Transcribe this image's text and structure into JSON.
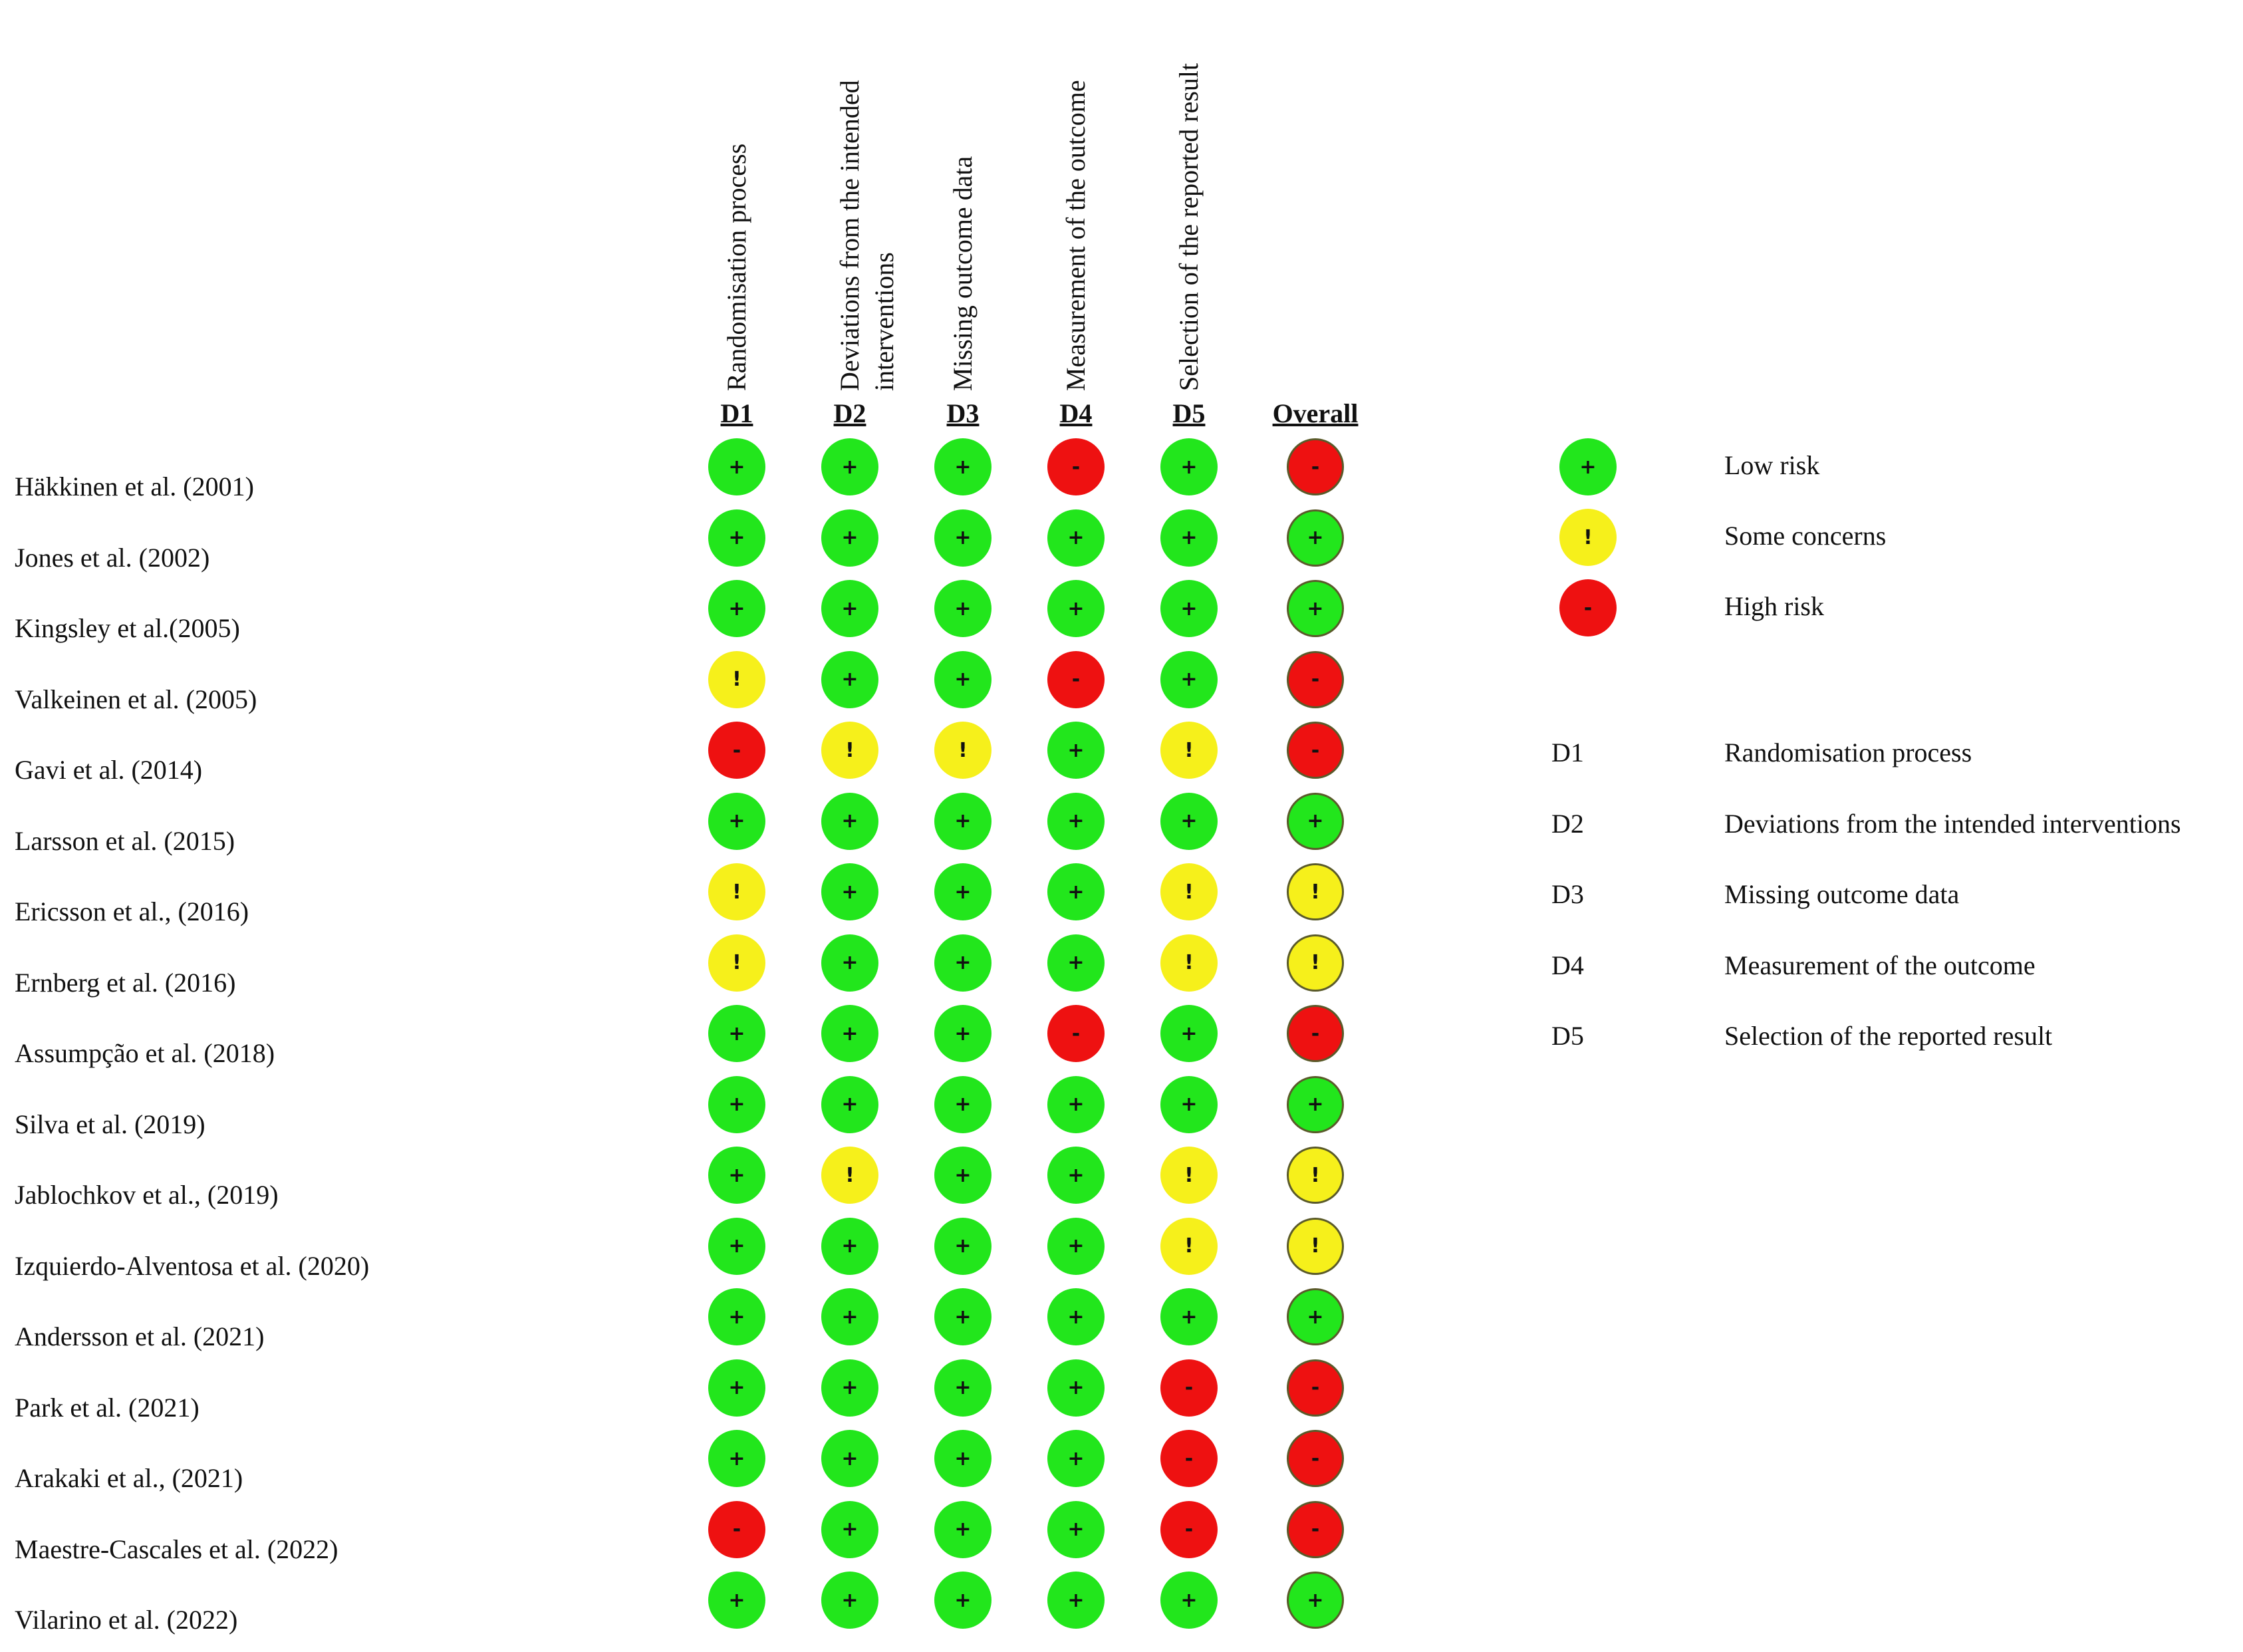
{
  "domains": [
    "D1",
    "D2",
    "D3",
    "D4",
    "D5",
    "Overall"
  ],
  "domain_headers": [
    [
      "Randomisation process"
    ],
    [
      "Deviations from the intended",
      "interventions"
    ],
    [
      "Missing outcome data"
    ],
    [
      "Measurement of the outcome"
    ],
    [
      "Selection of the reported result"
    ]
  ],
  "symbols": {
    "low": "+",
    "some": "!",
    "high": "-"
  },
  "colors": {
    "low": "#22e61c",
    "some": "#f6f01b",
    "high": "#ee1111"
  },
  "studies": [
    {
      "name": "Häkkinen et al. (2001)",
      "ratings": [
        "low",
        "low",
        "low",
        "high",
        "low",
        "high"
      ]
    },
    {
      "name": "Jones et al. (2002)",
      "ratings": [
        "low",
        "low",
        "low",
        "low",
        "low",
        "low"
      ]
    },
    {
      "name": "Kingsley et al.(2005)",
      "ratings": [
        "low",
        "low",
        "low",
        "low",
        "low",
        "low"
      ]
    },
    {
      "name": "Valkeinen et al. (2005)",
      "ratings": [
        "some",
        "low",
        "low",
        "high",
        "low",
        "high"
      ]
    },
    {
      "name": "Gavi et al. (2014)",
      "ratings": [
        "high",
        "some",
        "some",
        "low",
        "some",
        "high"
      ]
    },
    {
      "name": "Larsson et al. (2015)",
      "ratings": [
        "low",
        "low",
        "low",
        "low",
        "low",
        "low"
      ]
    },
    {
      "name": "Ericsson et al., (2016)",
      "ratings": [
        "some",
        "low",
        "low",
        "low",
        "some",
        "some"
      ]
    },
    {
      "name": "Ernberg et al. (2016)",
      "ratings": [
        "some",
        "low",
        "low",
        "low",
        "some",
        "some"
      ]
    },
    {
      "name": "Assumpção et al. (2018)",
      "ratings": [
        "low",
        "low",
        "low",
        "high",
        "low",
        "high"
      ]
    },
    {
      "name": "Silva et al. (2019)",
      "ratings": [
        "low",
        "low",
        "low",
        "low",
        "low",
        "low"
      ]
    },
    {
      "name": "Jablochkov et al., (2019)",
      "ratings": [
        "low",
        "some",
        "low",
        "low",
        "some",
        "some"
      ]
    },
    {
      "name": "Izquierdo-Alventosa et al. (2020)",
      "ratings": [
        "low",
        "low",
        "low",
        "low",
        "some",
        "some"
      ]
    },
    {
      "name": "Andersson et al. (2021)",
      "ratings": [
        "low",
        "low",
        "low",
        "low",
        "low",
        "low"
      ]
    },
    {
      "name": "Park et al. (2021)",
      "ratings": [
        "low",
        "low",
        "low",
        "low",
        "high",
        "high"
      ]
    },
    {
      "name": "Arakaki et al., (2021)",
      "ratings": [
        "low",
        "low",
        "low",
        "low",
        "high",
        "high"
      ]
    },
    {
      "name": "Maestre-Cascales et al. (2022)",
      "ratings": [
        "high",
        "low",
        "low",
        "low",
        "high",
        "high"
      ]
    },
    {
      "name": "Vilarino et al. (2022)",
      "ratings": [
        "low",
        "low",
        "low",
        "low",
        "low",
        "low"
      ]
    }
  ],
  "legend": {
    "risk": [
      {
        "level": "low",
        "label": "Low risk"
      },
      {
        "level": "some",
        "label": "Some concerns"
      },
      {
        "level": "high",
        "label": "High risk"
      }
    ],
    "domains": [
      {
        "code": "D1",
        "label": "Randomisation process"
      },
      {
        "code": "D2",
        "label": "Deviations from the intended interventions"
      },
      {
        "code": "D3",
        "label": "Missing outcome data"
      },
      {
        "code": "D4",
        "label": "Measurement of the outcome"
      },
      {
        "code": "D5",
        "label": "Selection of the reported result"
      }
    ]
  }
}
